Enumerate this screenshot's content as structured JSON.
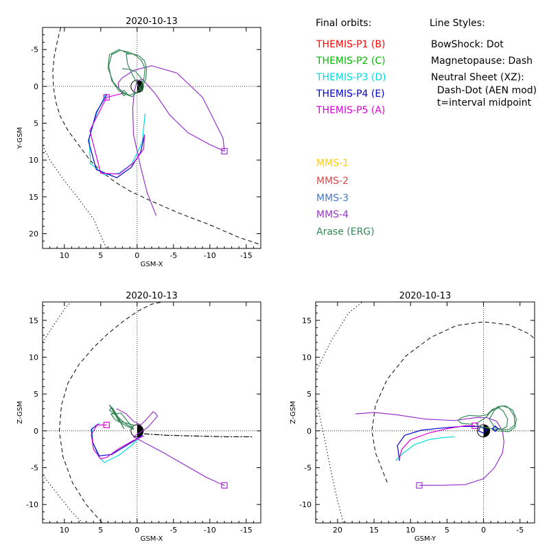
{
  "legend": {
    "final_orbits_title": "Final orbits:",
    "line_styles_title": "Line Styles:",
    "themis": [
      {
        "label": "THEMIS-P1 (B)",
        "color": "#ff0000"
      },
      {
        "label": "THEMIS-P2 (C)",
        "color": "#00bb00"
      },
      {
        "label": "THEMIS-P3 (D)",
        "color": "#00dddd"
      },
      {
        "label": "THEMIS-P4 (E)",
        "color": "#0000cc"
      },
      {
        "label": "THEMIS-P5 (A)",
        "color": "#dd00dd"
      }
    ],
    "mms": [
      {
        "label": "MMS-1",
        "color": "#ffcc00"
      },
      {
        "label": "MMS-2",
        "color": "#dd4444"
      },
      {
        "label": "MMS-3",
        "color": "#4477cc"
      },
      {
        "label": "MMS-4",
        "color": "#9933cc"
      },
      {
        "label": "Arase (ERG)",
        "color": "#338855"
      }
    ],
    "line_styles": [
      "BowShock: Dot",
      "Magnetopause: Dash",
      "Neutral Sheet (XZ):",
      "  Dash-Dot (AEN mod)",
      "  t=interval midpoint"
    ]
  },
  "colors": {
    "p3": "#00dddd",
    "p4": "#0000cc",
    "p5": "#dd00dd",
    "mms4": "#9933cc",
    "erg": "#338855",
    "axes": "#000000"
  },
  "chart_data": [
    {
      "id": "xy",
      "type": "line",
      "title": "2020-10-13",
      "xlabel": "GSM-X",
      "ylabel": "Y-GSM",
      "xlim": [
        13,
        -17
      ],
      "ylim": [
        -8,
        22
      ],
      "xticks": [
        10,
        5,
        0,
        -5,
        -10,
        -15
      ],
      "yticks": [
        -5,
        0,
        5,
        10,
        15,
        20
      ],
      "y_inverted": true,
      "series": [
        {
          "name": "THEMIS-P3 (D)",
          "color": "#00dddd",
          "x": [
            4.3,
            5.5,
            6.6,
            6.4,
            4.5,
            2.5,
            0.7,
            -0.7,
            -1.1
          ],
          "y": [
            1.0,
            3.5,
            7.0,
            10.5,
            12.0,
            11.8,
            10.5,
            7.6,
            3.7
          ]
        },
        {
          "name": "THEMIS-P4 (E)",
          "color": "#0000cc",
          "x": [
            4.2,
            5.6,
            6.7,
            5.6,
            2.8,
            0.8,
            -0.5,
            -1.0
          ],
          "y": [
            1.2,
            3.5,
            7.4,
            11.3,
            12.4,
            11.0,
            8.9,
            6.6
          ]
        },
        {
          "name": "THEMIS-P5 (A)",
          "color": "#dd00dd",
          "x": [
            1.8,
            4.2,
            6.5,
            5.0,
            2.5,
            0.5,
            -0.9,
            -1.0
          ],
          "y": [
            0.9,
            1.5,
            6.0,
            11.8,
            11.9,
            10.4,
            8.5,
            6.7
          ]
        },
        {
          "name": "MMS-4",
          "color": "#9933cc",
          "x": [
            1.8,
            2.5,
            2.6,
            2.0,
            0.4,
            -2.0,
            -5.5,
            -9.0,
            -11.8,
            -12.0,
            -10.0,
            -7.0,
            -4.5,
            -2.5,
            -0.7,
            0.0,
            0.4,
            0.6,
            0.5,
            -0.5,
            -1.4,
            -2.6
          ],
          "y": [
            0.9,
            0.3,
            -0.5,
            -1.2,
            -2.2,
            -2.8,
            -1.8,
            1.5,
            7.0,
            8.8,
            7.9,
            6.3,
            3.9,
            1.0,
            -1.0,
            -0.7,
            0.7,
            3.0,
            6.5,
            11.0,
            14.5,
            17.5
          ]
        },
        {
          "name": "THEMIS-P2 (C)",
          "color": "#338855",
          "x": [
            1.0,
            2.5,
            3.8,
            4.0,
            3.3,
            2.0,
            0.7,
            -0.2,
            -0.9,
            -1.1,
            -0.6,
            0.2,
            1.0,
            2.3,
            3.5,
            3.9,
            3.5,
            2.5,
            1.0,
            -0.5,
            -1.2,
            -1.3,
            -1.0,
            -0.3,
            0.5,
            1.5,
            1.3,
            0.6,
            -0.1,
            -0.7,
            -0.9,
            -0.5,
            0.2,
            1.0,
            2.0
          ],
          "y": [
            -4.4,
            -5.0,
            -4.3,
            -2.5,
            -0.6,
            0.9,
            1.4,
            0.6,
            -0.8,
            -2.4,
            -3.5,
            -4.2,
            -4.6,
            -4.9,
            -4.3,
            -2.8,
            -0.8,
            0.6,
            1.2,
            0.5,
            -1.0,
            -2.4,
            -3.5,
            -4.1,
            -4.4,
            -4.4,
            -3.0,
            -1.5,
            -0.2,
            0.7,
            0.0,
            -1.2,
            -2.0,
            -2.3,
            -2.4
          ]
        }
      ],
      "markers": [
        {
          "series": "THEMIS-P5 (A)",
          "shape": "square",
          "x": 4.2,
          "y": 1.5
        },
        {
          "series": "MMS-4",
          "shape": "square",
          "x": -12.0,
          "y": 8.8
        },
        {
          "series": "THEMIS-P2 (C)",
          "shape": "diamond",
          "x": 1.8,
          "y": 0.9
        }
      ],
      "boundaries": [
        {
          "name": "bowshock",
          "style": "dot",
          "x": [
            13.0,
            12.0,
            10.0,
            8.0,
            6.0,
            4.2
          ],
          "y": [
            8.0,
            10.0,
            12.8,
            15.3,
            18.0,
            22.0
          ]
        },
        {
          "name": "magnetopause",
          "style": "dash",
          "x": [
            10.5,
            11.0,
            11.4,
            11.6,
            11.5,
            11.2,
            10.6,
            9.5,
            8.0,
            6.5,
            5.0,
            3.0,
            1.0,
            -2.0,
            -6.0,
            -10.0,
            -14.0,
            -17.0
          ],
          "y": [
            -8.0,
            -6.0,
            -4.0,
            -2.0,
            0.0,
            2.0,
            4.0,
            6.0,
            8.0,
            10.0,
            11.5,
            13.0,
            14.2,
            15.6,
            17.3,
            18.8,
            20.5,
            21.5
          ]
        }
      ],
      "earth": "day-night disc at origin"
    },
    {
      "id": "xz",
      "type": "line",
      "title": "2020-10-13",
      "xlabel": "GSM-X",
      "ylabel": "Z-GSM",
      "xlim": [
        13,
        -17
      ],
      "ylim": [
        -12.5,
        17.5
      ],
      "xticks": [
        10,
        5,
        0,
        -5,
        -10,
        -15
      ],
      "yticks": [
        -10,
        -5,
        0,
        5,
        10,
        15
      ],
      "y_inverted": false,
      "series": [
        {
          "name": "THEMIS-P3 (D)",
          "color": "#00dddd",
          "x": [
            5.2,
            6.2,
            6.1,
            5.3,
            4.5,
            2.5,
            0.8,
            -0.7
          ],
          "y": [
            1.0,
            0.3,
            -1.5,
            -3.5,
            -4.3,
            -3.3,
            -2.0,
            -0.6
          ]
        },
        {
          "name": "THEMIS-P4 (E)",
          "color": "#0000cc",
          "x": [
            5.4,
            6.3,
            6.1,
            5.2,
            3.5,
            1.5,
            0.3,
            -0.7
          ],
          "y": [
            0.9,
            0.2,
            -1.6,
            -3.4,
            -3.2,
            -2.0,
            -1.3,
            -0.6
          ]
        },
        {
          "name": "THEMIS-P5 (A)",
          "color": "#dd00dd",
          "x": [
            4.2,
            5.5,
            6.3,
            6.0,
            5.0,
            4.2,
            2.5,
            0.7,
            -0.9
          ],
          "y": [
            0.8,
            0.8,
            -0.5,
            -2.5,
            -3.8,
            -3.6,
            -2.4,
            -1.4,
            -0.7
          ]
        },
        {
          "name": "MMS-4",
          "color": "#9933cc",
          "x": [
            2.8,
            1.5,
            0.5,
            -0.5,
            -1.5,
            -2.2,
            -2.6,
            -2.8,
            -1.5,
            0.5,
            -1.0,
            -3.5,
            -6.5,
            -9.5,
            -11.5,
            -12.0
          ],
          "y": [
            3.0,
            2.3,
            1.3,
            0.8,
            1.8,
            2.6,
            2.3,
            2.0,
            0.5,
            -0.8,
            -1.6,
            -2.9,
            -4.6,
            -6.3,
            -7.2,
            -7.4
          ]
        },
        {
          "name": "THEMIS-P2 (C)",
          "color": "#338855",
          "x": [
            0.5,
            2.5,
            3.8,
            3.3,
            2.5,
            1.8,
            3.5,
            3.8,
            2.8,
            1.5,
            0.5,
            2.2,
            3.6,
            3.0,
            1.3,
            0.5
          ],
          "y": [
            0.8,
            1.3,
            3.5,
            3.0,
            1.7,
            0.3,
            3.2,
            2.8,
            2.0,
            0.9,
            0.3,
            2.4,
            2.3,
            1.5,
            0.6,
            0.2
          ]
        },
        {
          "name": "Neutral sheet",
          "color": "#000000",
          "style": "dashdot",
          "x": [
            -1.0,
            -4.0,
            -8.0,
            -12.0,
            -16.0
          ],
          "y": [
            -0.4,
            -0.6,
            -0.7,
            -0.8,
            -0.8
          ]
        }
      ],
      "markers": [
        {
          "series": "THEMIS-P5 (A)",
          "shape": "square",
          "x": 4.2,
          "y": 0.8
        },
        {
          "series": "MMS-4",
          "shape": "square",
          "x": -12.0,
          "y": -7.4
        }
      ],
      "boundaries": [
        {
          "name": "bowshock",
          "style": "dot",
          "x": [
            13.0,
            11.0,
            9.0,
            7.5,
            7.0
          ],
          "y": [
            -6.0,
            -8.5,
            -11.0,
            -12.5,
            -12.5
          ]
        },
        {
          "name": "bowshock-upper",
          "style": "dot",
          "x": [
            13.0,
            11.5,
            9.8,
            9.0
          ],
          "y": [
            12.0,
            14.3,
            16.8,
            17.5
          ]
        },
        {
          "name": "magnetopause",
          "style": "dash",
          "x": [
            4.8,
            7.0,
            8.9,
            10.2,
            10.7,
            10.4,
            9.5,
            8.0,
            6.0,
            4.0,
            2.0,
            0.0,
            -2.0,
            -4.0
          ],
          "y": [
            -12.5,
            -10.0,
            -7.0,
            -3.5,
            0.0,
            3.5,
            6.5,
            9.0,
            11.3,
            13.2,
            14.8,
            16.2,
            17.2,
            17.6
          ]
        }
      ],
      "earth": "day-night disc at origin"
    },
    {
      "id": "yz",
      "type": "line",
      "title": "2020-10-13",
      "xlabel": "GSM-Y",
      "ylabel": "Z-GSM",
      "xlim": [
        23,
        -7
      ],
      "ylim": [
        -12.5,
        17.5
      ],
      "xticks": [
        20,
        15,
        10,
        5,
        0,
        -5
      ],
      "yticks": [
        -10,
        -5,
        0,
        5,
        10,
        15
      ],
      "y_inverted": false,
      "series": [
        {
          "name": "THEMIS-P3 (D)",
          "color": "#00dddd",
          "x": [
            12.0,
            11.0,
            9.5,
            7.5,
            5.5,
            4.0
          ],
          "y": [
            -4.0,
            -3.0,
            -1.9,
            -1.2,
            -0.9,
            -0.8
          ]
        },
        {
          "name": "THEMIS-P4 (E)",
          "color": "#0000cc",
          "x": [
            11.5,
            11.8,
            10.8,
            8.5,
            5.5,
            3.0,
            0.5,
            -0.5,
            0.0,
            0.7,
            0.4
          ],
          "y": [
            -4.0,
            -2.0,
            -0.6,
            0.1,
            0.4,
            0.6,
            0.6,
            0.1,
            -0.3,
            0.0,
            0.6
          ]
        },
        {
          "name": "THEMIS-P5 (A)",
          "color": "#dd00dd",
          "x": [
            11.6,
            11.2,
            10.0,
            7.5,
            5.0,
            2.5,
            1.2
          ],
          "y": [
            -4.0,
            -2.5,
            -1.2,
            -0.3,
            0.3,
            0.7,
            0.7
          ]
        },
        {
          "name": "MMS-4",
          "color": "#9933cc",
          "x": [
            17.5,
            15.0,
            12.0,
            8.0,
            4.0,
            1.0,
            -0.5,
            -1.8,
            -2.6,
            -2.8,
            -2.6,
            -1.5,
            0.0,
            2.5,
            6.0,
            8.8
          ],
          "y": [
            2.3,
            2.5,
            2.2,
            1.6,
            1.4,
            1.8,
            1.8,
            1.3,
            0.0,
            -1.5,
            -3.0,
            -5.0,
            -6.5,
            -7.3,
            -7.4,
            -7.4
          ]
        },
        {
          "name": "THEMIS-P2 (C)",
          "color": "#338855",
          "x": [
            -0.5,
            -1.8,
            -3.5,
            -4.3,
            -4.5,
            -4.0,
            -3.0,
            -2.0,
            -1.0,
            -0.3,
            0.5,
            1.0,
            0.6,
            -0.5,
            -2.0,
            -3.5,
            -4.3,
            -4.2,
            -3.5,
            -2.5,
            -1.5,
            -0.8,
            -1.5,
            -2.5,
            -3.2,
            -3.3,
            -2.7,
            -2.0,
            -1.2,
            -0.5,
            0.5,
            2.0,
            3.0,
            3.5,
            3.0,
            1.5
          ],
          "y": [
            0.5,
            0.0,
            -0.1,
            0.5,
            1.6,
            2.8,
            3.4,
            3.3,
            2.6,
            1.8,
            1.3,
            1.0,
            0.6,
            0.4,
            0.2,
            0.2,
            0.8,
            2.0,
            3.1,
            3.4,
            2.8,
            1.6,
            0.5,
            0.2,
            0.6,
            1.6,
            2.7,
            3.2,
            2.9,
            2.2,
            2.0,
            2.1,
            1.8,
            1.4,
            1.0,
            0.9
          ]
        }
      ],
      "markers": [
        {
          "series": "THEMIS-P5 (A)",
          "shape": "square",
          "x": 1.2,
          "y": 0.7
        },
        {
          "series": "MMS-4",
          "shape": "square",
          "x": 8.8,
          "y": -7.4
        },
        {
          "series": "THEMIS-P4 (E)",
          "shape": "diamond",
          "x": -1.6,
          "y": 0.3
        }
      ],
      "boundaries": [
        {
          "name": "bowshock",
          "style": "dot",
          "x": [
            23.0,
            22.0,
            21.0,
            20.0,
            19.2
          ],
          "y": [
            4.5,
            0.0,
            -5.0,
            -9.5,
            -12.5
          ]
        },
        {
          "name": "bowshock-upper",
          "style": "dot",
          "x": [
            23.0,
            21.0,
            18.5,
            16.6
          ],
          "y": [
            8.0,
            12.0,
            16.0,
            17.5
          ]
        },
        {
          "name": "magnetopause",
          "style": "dash",
          "x": [
            13.2,
            14.8,
            15.3,
            14.8,
            13.2,
            10.6,
            7.2,
            3.7,
            0.0,
            -3.5,
            -6.2,
            -7.0
          ],
          "y": [
            -7.0,
            -3.0,
            0.0,
            3.5,
            7.0,
            10.2,
            12.7,
            14.3,
            14.8,
            14.4,
            13.2,
            12.5
          ]
        }
      ],
      "earth": "day-night disc at origin"
    }
  ]
}
